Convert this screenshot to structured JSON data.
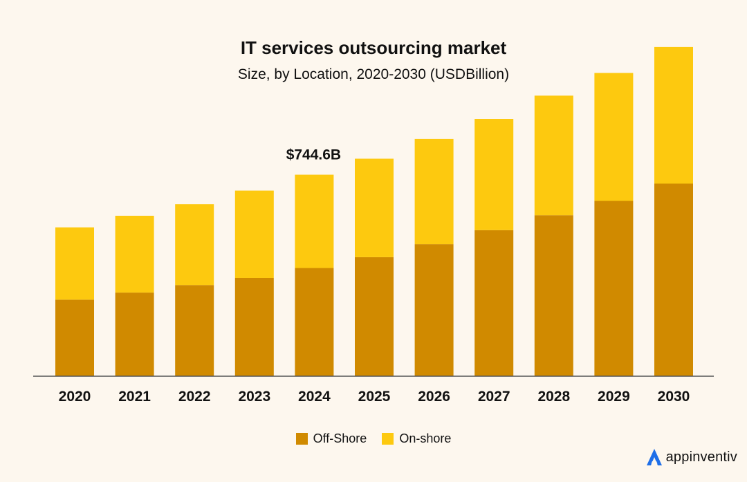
{
  "header": {
    "title": "IT services outsourcing market",
    "subtitle": "Size, by Location, 2020-2030 (USDBillion)"
  },
  "colors": {
    "offshore": "#d08a00",
    "onshore": "#fdc90f",
    "axis": "#555555",
    "brand_icon": "#1f6fe8"
  },
  "chart_data": {
    "type": "bar",
    "stacked": true,
    "title": "IT services outsourcing market",
    "subtitle": "Size, by Location, 2020-2030 (USDBillion)",
    "categories": [
      "2020",
      "2021",
      "2022",
      "2023",
      "2024",
      "2025",
      "2026",
      "2027",
      "2028",
      "2029",
      "2030"
    ],
    "series": [
      {
        "name": "Off-Shore",
        "values": [
          283,
          309,
          337,
          363,
          400,
          440,
          488,
          540,
          595,
          648,
          712
        ]
      },
      {
        "name": "On-shore",
        "values": [
          267,
          284,
          299,
          323,
          345,
          364,
          389,
          411,
          442,
          473,
          505
        ]
      }
    ],
    "annotations": [
      {
        "category": "2024",
        "text": "$744.6B"
      }
    ],
    "ylim": [
      0,
      1250
    ],
    "grid": false,
    "legend": "bottom-center"
  },
  "legend": {
    "items": [
      {
        "label": "Off-Shore"
      },
      {
        "label": "On-shore"
      }
    ]
  },
  "brand": {
    "icon": "appinventiv-a-icon",
    "name": "appinventiv"
  }
}
